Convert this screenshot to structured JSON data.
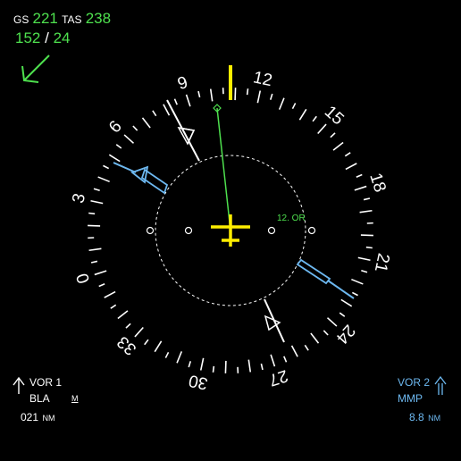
{
  "speeds": {
    "gs_label": "GS",
    "gs_value": "221",
    "tas_label": "TAS",
    "tas_value": "238"
  },
  "wind": {
    "direction": "152",
    "separator": "/",
    "speed": "24"
  },
  "compass": {
    "card_labels": [
      "9",
      "12",
      "15",
      "18",
      "21",
      "24",
      "27",
      "30",
      "33",
      "0",
      "3",
      "6"
    ],
    "dme_label": "12. OR"
  },
  "vor1": {
    "title": "VOR 1",
    "ident": "BLA",
    "mode": "M",
    "distance": "021",
    "unit": "NM"
  },
  "vor2": {
    "title": "VOR 2",
    "ident": "MMP",
    "distance": "8.8",
    "unit": "NM"
  },
  "icons": {
    "wind": "wind-arrow-icon",
    "aircraft": "aircraft-symbol-icon",
    "lubber": "lubber-line-icon",
    "vor1": "single-needle-pointer-icon",
    "vor2": "double-needle-pointer-icon"
  },
  "colors": {
    "text": "#ffffff",
    "green": "#4ee04e",
    "cyan": "#6db8f0",
    "yellow": "#ffee00",
    "background": "#000000"
  }
}
